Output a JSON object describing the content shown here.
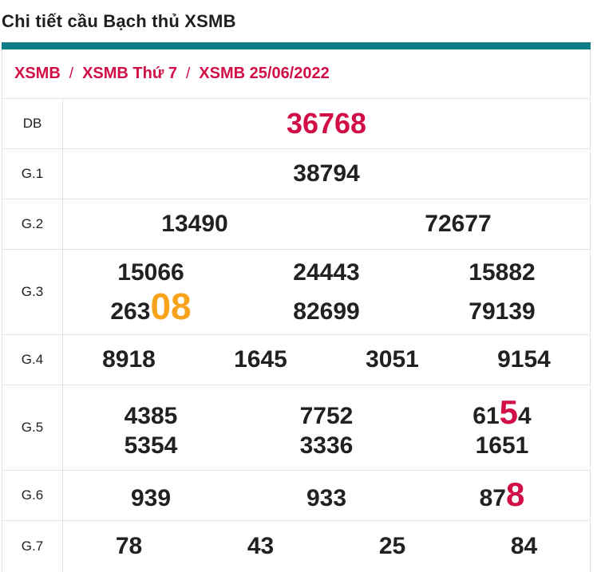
{
  "page": {
    "title": "Chi tiết cầu Bạch thủ XSMB"
  },
  "breadcrumb": {
    "separator": "/",
    "items": [
      "XSMB",
      "XSMB Thứ 7",
      "XSMB 25/06/2022"
    ]
  },
  "colors": {
    "accent_teal": "#0d7e87",
    "crimson": "#d10e46",
    "orange": "#f9a21b",
    "text": "#212121",
    "border": "#e3e3e3"
  },
  "table": {
    "rows": [
      {
        "label": "DB",
        "emphasis": "special",
        "lines": [
          [
            [
              {
                "t": "36768"
              }
            ]
          ]
        ]
      },
      {
        "label": "G.1",
        "lines": [
          [
            [
              {
                "t": "38794"
              }
            ]
          ]
        ]
      },
      {
        "label": "G.2",
        "lines": [
          [
            [
              {
                "t": "13490"
              }
            ],
            [
              {
                "t": "72677"
              }
            ]
          ]
        ]
      },
      {
        "label": "G.3",
        "lines": [
          [
            [
              {
                "t": "15066"
              }
            ],
            [
              {
                "t": "24443"
              }
            ],
            [
              {
                "t": "15882"
              }
            ]
          ],
          [
            [
              {
                "t": "263"
              },
              {
                "t": "08",
                "c": "orange"
              }
            ],
            [
              {
                "t": "82699"
              }
            ],
            [
              {
                "t": "79139"
              }
            ]
          ]
        ]
      },
      {
        "label": "G.4",
        "lines": [
          [
            [
              {
                "t": "8918"
              }
            ],
            [
              {
                "t": "1645"
              }
            ],
            [
              {
                "t": "3051"
              }
            ],
            [
              {
                "t": "9154"
              }
            ]
          ]
        ]
      },
      {
        "label": "G.5",
        "lines": [
          [
            [
              {
                "t": "4385"
              }
            ],
            [
              {
                "t": "7752"
              }
            ],
            [
              {
                "t": "61"
              },
              {
                "t": "5",
                "c": "red"
              },
              {
                "t": "4"
              }
            ]
          ],
          [
            [
              {
                "t": "5354"
              }
            ],
            [
              {
                "t": "3336"
              }
            ],
            [
              {
                "t": "1651"
              }
            ]
          ]
        ]
      },
      {
        "label": "G.6",
        "lines": [
          [
            [
              {
                "t": "939"
              }
            ],
            [
              {
                "t": "933"
              }
            ],
            [
              {
                "t": "87"
              },
              {
                "t": "8",
                "c": "red"
              }
            ]
          ]
        ]
      },
      {
        "label": "G.7",
        "lines": [
          [
            [
              {
                "t": "78"
              }
            ],
            [
              {
                "t": "43"
              }
            ],
            [
              {
                "t": "25"
              }
            ],
            [
              {
                "t": "84"
              }
            ]
          ]
        ]
      }
    ]
  }
}
